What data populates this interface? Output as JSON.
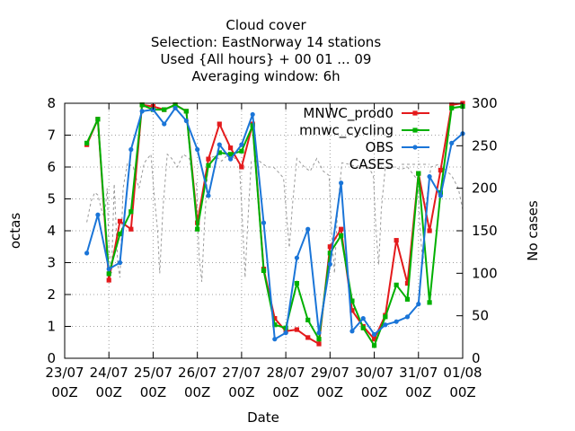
{
  "chart_data": {
    "type": "line",
    "title_lines": [
      "Cloud cover",
      "Selection: EastNorway     14 stations",
      "Used {All hours} + 00 01 ... 09",
      "Averaging window:  6h"
    ],
    "xlabel": "Date",
    "ylabel": "octas",
    "y2label": "No cases",
    "xlim": [
      0,
      9
    ],
    "ylim": [
      0,
      8
    ],
    "y2lim": [
      0,
      300
    ],
    "x_ticks": [
      {
        "x": 0,
        "line1": "23/07",
        "line2": "00Z"
      },
      {
        "x": 1,
        "line1": "24/07",
        "line2": "00Z"
      },
      {
        "x": 2,
        "line1": "25/07",
        "line2": "00Z"
      },
      {
        "x": 3,
        "line1": "26/07",
        "line2": "00Z"
      },
      {
        "x": 4,
        "line1": "27/07",
        "line2": "00Z"
      },
      {
        "x": 5,
        "line1": "28/07",
        "line2": "00Z"
      },
      {
        "x": 6,
        "line1": "29/07",
        "line2": "00Z"
      },
      {
        "x": 7,
        "line1": "30/07",
        "line2": "00Z"
      },
      {
        "x": 8,
        "line1": "31/07",
        "line2": "00Z"
      },
      {
        "x": 9,
        "line1": "01/08",
        "line2": "00Z"
      }
    ],
    "y_ticks": [
      "0",
      "1",
      "2",
      "3",
      "4",
      "5",
      "6",
      "7",
      "8"
    ],
    "y2_ticks": [
      "0",
      "50",
      "100",
      "150",
      "200",
      "250",
      "300"
    ],
    "grid": true,
    "legend_position": "top-right",
    "x": [
      0.5,
      0.75,
      1.0,
      1.25,
      1.5,
      1.75,
      2.0,
      2.25,
      2.5,
      2.75,
      3.0,
      3.25,
      3.5,
      3.75,
      4.0,
      4.25,
      4.5,
      4.75,
      5.0,
      5.25,
      5.5,
      5.75,
      6.0,
      6.25,
      6.5,
      6.75,
      7.0,
      7.25,
      7.5,
      7.75,
      8.0,
      8.25,
      8.5,
      8.75,
      9.0
    ],
    "series": [
      {
        "name": "MNWC_prod0",
        "color": "#e41a1c",
        "axis": "left",
        "marker": "square",
        "values": [
          6.7,
          7.5,
          2.45,
          4.3,
          4.05,
          7.95,
          7.9,
          7.8,
          7.95,
          7.75,
          4.25,
          6.25,
          7.35,
          6.6,
          6.0,
          7.35,
          2.8,
          1.25,
          0.85,
          0.9,
          0.65,
          0.45,
          3.5,
          4.05,
          1.5,
          1.0,
          0.6,
          1.35,
          3.7,
          2.35,
          5.8,
          4.0,
          5.9,
          7.95,
          8.0
        ]
      },
      {
        "name": "mnwc_cycling",
        "color": "#00b000",
        "axis": "left",
        "marker": "square",
        "values": [
          6.75,
          7.5,
          2.65,
          3.9,
          4.6,
          7.95,
          7.8,
          7.8,
          7.95,
          7.75,
          4.05,
          6.05,
          6.45,
          6.4,
          6.5,
          7.3,
          2.75,
          1.05,
          0.95,
          2.35,
          1.2,
          0.6,
          3.3,
          3.85,
          1.8,
          0.95,
          0.4,
          1.3,
          2.3,
          1.85,
          5.8,
          1.75,
          5.2,
          7.85,
          7.9
        ]
      },
      {
        "name": "OBS",
        "color": "#1a75d8",
        "axis": "left",
        "marker": "circle",
        "values": [
          3.3,
          4.5,
          2.8,
          3.0,
          6.55,
          7.75,
          7.8,
          7.35,
          7.85,
          7.45,
          6.55,
          5.1,
          6.7,
          6.25,
          6.7,
          7.65,
          4.25,
          0.6,
          0.8,
          3.15,
          4.05,
          0.8,
          2.95,
          5.5,
          0.85,
          1.25,
          0.75,
          1.05,
          1.15,
          1.3,
          1.7,
          5.7,
          5.1,
          6.75,
          7.05
        ]
      },
      {
        "name": "CASES",
        "color": "#999999",
        "axis": "right",
        "dashed": true,
        "values": [
          [
            0.5,
            160
          ],
          [
            0.6,
            185
          ],
          [
            0.68,
            195
          ],
          [
            0.75,
            192
          ],
          [
            0.83,
            175
          ],
          [
            0.9,
            165
          ],
          [
            0.96,
            200
          ],
          [
            1.0,
            130
          ],
          [
            1.06,
            100
          ],
          [
            1.12,
            205
          ],
          [
            1.2,
            110
          ],
          [
            1.25,
            95
          ],
          [
            1.32,
            200
          ],
          [
            1.42,
            230
          ],
          [
            1.55,
            225
          ],
          [
            1.68,
            200
          ],
          [
            1.8,
            230
          ],
          [
            1.95,
            240
          ],
          [
            2.02,
            195
          ],
          [
            2.1,
            150
          ],
          [
            2.15,
            100
          ],
          [
            2.22,
            175
          ],
          [
            2.32,
            240
          ],
          [
            2.42,
            235
          ],
          [
            2.55,
            225
          ],
          [
            2.68,
            240
          ],
          [
            2.82,
            235
          ],
          [
            2.9,
            210
          ],
          [
            2.98,
            205
          ],
          [
            3.04,
            120
          ],
          [
            3.1,
            90
          ],
          [
            3.16,
            155
          ],
          [
            3.25,
            235
          ],
          [
            3.4,
            238
          ],
          [
            3.55,
            232
          ],
          [
            3.7,
            240
          ],
          [
            3.85,
            235
          ],
          [
            3.95,
            230
          ],
          [
            4.03,
            150
          ],
          [
            4.08,
            95
          ],
          [
            4.13,
            150
          ],
          [
            4.22,
            232
          ],
          [
            4.4,
            232
          ],
          [
            4.58,
            225
          ],
          [
            4.72,
            225
          ],
          [
            4.85,
            218
          ],
          [
            4.95,
            212
          ],
          [
            5.03,
            160
          ],
          [
            5.08,
            130
          ],
          [
            5.15,
            180
          ],
          [
            5.25,
            235
          ],
          [
            5.42,
            225
          ],
          [
            5.55,
            220
          ],
          [
            5.7,
            235
          ],
          [
            5.85,
            220
          ],
          [
            5.98,
            215
          ],
          [
            6.04,
            145
          ],
          [
            6.1,
            100
          ],
          [
            6.17,
            175
          ],
          [
            6.27,
            230
          ],
          [
            6.45,
            228
          ],
          [
            6.6,
            225
          ],
          [
            6.75,
            232
          ],
          [
            6.9,
            222
          ],
          [
            6.98,
            215
          ],
          [
            7.04,
            150
          ],
          [
            7.1,
            110
          ],
          [
            7.16,
            175
          ],
          [
            7.25,
            225
          ],
          [
            7.45,
            225
          ],
          [
            7.6,
            222
          ],
          [
            7.75,
            225
          ],
          [
            7.9,
            215
          ],
          [
            7.98,
            210
          ],
          [
            8.04,
            150
          ],
          [
            8.1,
            110
          ],
          [
            8.17,
            180
          ],
          [
            8.28,
            225
          ],
          [
            8.45,
            228
          ],
          [
            8.6,
            222
          ],
          [
            8.75,
            215
          ],
          [
            8.9,
            200
          ],
          [
            9.0,
            175
          ]
        ]
      }
    ]
  }
}
